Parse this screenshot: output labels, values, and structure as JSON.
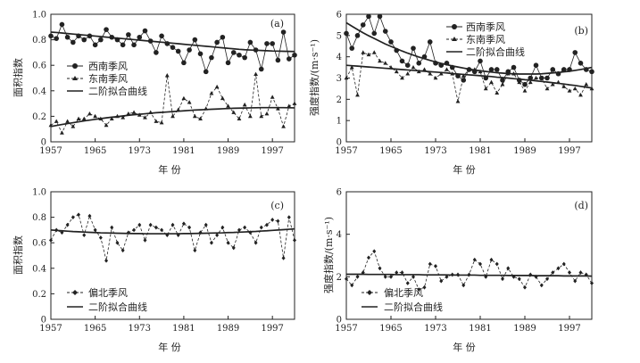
{
  "figure": {
    "xlabel": "年  份",
    "ylabel_area": "面积指数",
    "ylabel_intensity": "强度指数/(m·s⁻¹)",
    "series_names": {
      "sw": "西南季风",
      "se": "东南季风",
      "n": "偏北季风",
      "fit": "二阶拟合曲线"
    }
  },
  "chart_data": [
    {
      "type": "line",
      "panel_label": "(a)",
      "xlabel": "年  份",
      "ylabel": "面积指数",
      "xlim": [
        1957,
        2001
      ],
      "ylim": [
        0,
        1.0
      ],
      "xticks": [
        1957,
        1965,
        1973,
        1981,
        1989,
        1997
      ],
      "yticks": [
        "0",
        "0.2",
        "0.4",
        "0.6",
        "0.8",
        "1.0"
      ],
      "x": [
        1957,
        1958,
        1959,
        1960,
        1961,
        1962,
        1963,
        1964,
        1965,
        1966,
        1967,
        1968,
        1969,
        1970,
        1971,
        1972,
        1973,
        1974,
        1975,
        1976,
        1977,
        1978,
        1979,
        1980,
        1981,
        1982,
        1983,
        1984,
        1985,
        1986,
        1987,
        1988,
        1989,
        1990,
        1991,
        1992,
        1993,
        1994,
        1995,
        1996,
        1997,
        1998,
        1999,
        2000,
        2001
      ],
      "series": [
        {
          "name": "西南季风",
          "marker": "circle",
          "line": "solid",
          "values": [
            0.83,
            0.81,
            0.92,
            0.82,
            0.78,
            0.83,
            0.8,
            0.83,
            0.76,
            0.8,
            0.88,
            0.82,
            0.8,
            0.76,
            0.84,
            0.76,
            0.82,
            0.87,
            0.79,
            0.7,
            0.83,
            0.77,
            0.74,
            0.71,
            0.62,
            0.72,
            0.8,
            0.69,
            0.55,
            0.66,
            0.78,
            0.82,
            0.62,
            0.7,
            0.68,
            0.66,
            0.78,
            0.72,
            0.57,
            0.77,
            0.77,
            0.64,
            0.86,
            0.65,
            0.68
          ]
        },
        {
          "name": "东南季风",
          "marker": "triangle",
          "line": "dashed",
          "values": [
            0.13,
            0.16,
            0.07,
            0.16,
            0.12,
            0.18,
            0.18,
            0.22,
            0.2,
            0.18,
            0.13,
            0.18,
            0.2,
            0.19,
            0.22,
            0.23,
            0.21,
            0.19,
            0.23,
            0.16,
            0.15,
            0.52,
            0.2,
            0.25,
            0.34,
            0.31,
            0.2,
            0.18,
            0.26,
            0.38,
            0.43,
            0.34,
            0.28,
            0.23,
            0.18,
            0.29,
            0.2,
            0.53,
            0.2,
            0.22,
            0.35,
            0.26,
            0.12,
            0.28,
            0.3
          ]
        },
        {
          "name": "二阶拟合曲线",
          "line": "solid",
          "role": "fit-sw",
          "values": [
            0.86,
            0.857,
            0.853,
            0.849,
            0.845,
            0.841,
            0.837,
            0.833,
            0.829,
            0.825,
            0.821,
            0.817,
            0.813,
            0.809,
            0.805,
            0.801,
            0.797,
            0.793,
            0.789,
            0.785,
            0.781,
            0.777,
            0.773,
            0.769,
            0.765,
            0.761,
            0.757,
            0.753,
            0.749,
            0.745,
            0.741,
            0.737,
            0.733,
            0.729,
            0.725,
            0.722,
            0.72,
            0.718,
            0.716,
            0.714,
            0.712,
            0.711,
            0.71,
            0.709,
            0.708
          ]
        },
        {
          "name": "二阶拟合曲线",
          "line": "solid",
          "role": "fit-se",
          "values": [
            0.12,
            0.128,
            0.136,
            0.143,
            0.15,
            0.157,
            0.164,
            0.17,
            0.176,
            0.182,
            0.188,
            0.193,
            0.198,
            0.203,
            0.208,
            0.212,
            0.216,
            0.22,
            0.224,
            0.228,
            0.231,
            0.234,
            0.237,
            0.24,
            0.243,
            0.246,
            0.249,
            0.251,
            0.253,
            0.255,
            0.257,
            0.259,
            0.261,
            0.263,
            0.264,
            0.265,
            0.266,
            0.267,
            0.268,
            0.268,
            0.268,
            0.268,
            0.268,
            0.267,
            0.266
          ]
        }
      ]
    },
    {
      "type": "line",
      "panel_label": "(b)",
      "xlabel": "年  份",
      "ylabel": "强度指数/(m·s⁻¹)",
      "xlim": [
        1957,
        2001
      ],
      "ylim": [
        0,
        6
      ],
      "xticks": [
        1957,
        1965,
        1973,
        1981,
        1989,
        1997
      ],
      "yticks": [
        "0",
        "1",
        "2",
        "3",
        "4",
        "5",
        "6"
      ],
      "x": [
        1957,
        1958,
        1959,
        1960,
        1961,
        1962,
        1963,
        1964,
        1965,
        1966,
        1967,
        1968,
        1969,
        1970,
        1971,
        1972,
        1973,
        1974,
        1975,
        1976,
        1977,
        1978,
        1979,
        1980,
        1981,
        1982,
        1983,
        1984,
        1985,
        1986,
        1987,
        1988,
        1989,
        1990,
        1991,
        1992,
        1993,
        1994,
        1995,
        1996,
        1997,
        1998,
        1999,
        2000,
        2001
      ],
      "series": [
        {
          "name": "西南季风",
          "marker": "circle",
          "line": "solid",
          "values": [
            5.1,
            4.4,
            5.0,
            5.5,
            5.9,
            5.1,
            5.9,
            5.2,
            4.7,
            4.3,
            3.8,
            3.6,
            4.4,
            3.7,
            4.0,
            4.7,
            3.7,
            3.6,
            3.7,
            3.5,
            3.1,
            2.9,
            3.4,
            3.3,
            3.8,
            3.0,
            3.4,
            3.4,
            2.9,
            3.3,
            3.5,
            2.9,
            2.7,
            3.0,
            3.6,
            3.0,
            3.0,
            3.4,
            3.2,
            3.4,
            3.4,
            4.2,
            3.7,
            3.4,
            3.3
          ]
        },
        {
          "name": "东南季风",
          "marker": "triangle",
          "line": "dashed",
          "values": [
            3.0,
            3.5,
            2.2,
            4.2,
            4.1,
            4.2,
            3.8,
            3.7,
            3.5,
            3.3,
            3.0,
            3.2,
            3.5,
            3.3,
            3.4,
            3.2,
            3.0,
            3.2,
            3.4,
            3.2,
            1.9,
            3.1,
            3.4,
            3.4,
            3.3,
            2.5,
            2.8,
            2.3,
            2.7,
            3.2,
            3.2,
            2.8,
            2.4,
            2.8,
            3.0,
            3.0,
            2.5,
            2.7,
            2.8,
            2.6,
            2.4,
            2.5,
            2.2,
            2.7,
            2.5
          ]
        },
        {
          "name": "二阶拟合曲线",
          "line": "solid",
          "role": "fit-sw",
          "values": [
            5.6,
            5.44,
            5.28,
            5.13,
            4.99,
            4.86,
            4.73,
            4.6,
            4.49,
            4.38,
            4.27,
            4.17,
            4.08,
            3.99,
            3.91,
            3.83,
            3.76,
            3.69,
            3.63,
            3.57,
            3.52,
            3.47,
            3.42,
            3.38,
            3.34,
            3.31,
            3.28,
            3.25,
            3.23,
            3.21,
            3.2,
            3.19,
            3.19,
            3.19,
            3.19,
            3.2,
            3.22,
            3.24,
            3.26,
            3.29,
            3.32,
            3.36,
            3.4,
            3.45,
            3.5
          ]
        },
        {
          "name": "二阶拟合曲线",
          "line": "solid",
          "role": "fit-se",
          "values": [
            3.6,
            3.58,
            3.56,
            3.54,
            3.52,
            3.5,
            3.48,
            3.46,
            3.44,
            3.42,
            3.4,
            3.38,
            3.36,
            3.34,
            3.32,
            3.3,
            3.28,
            3.26,
            3.24,
            3.21,
            3.19,
            3.17,
            3.15,
            3.13,
            3.11,
            3.09,
            3.07,
            3.04,
            3.02,
            3.0,
            2.97,
            2.95,
            2.92,
            2.9,
            2.87,
            2.84,
            2.81,
            2.78,
            2.75,
            2.72,
            2.68,
            2.65,
            2.61,
            2.57,
            2.53
          ]
        }
      ]
    },
    {
      "type": "line",
      "panel_label": "(c)",
      "xlabel": "年  份",
      "ylabel": "面积指数",
      "xlim": [
        1957,
        2001
      ],
      "ylim": [
        0,
        1.0
      ],
      "xticks": [
        1957,
        1965,
        1973,
        1981,
        1989,
        1997
      ],
      "yticks": [
        "0",
        "0.2",
        "0.4",
        "0.6",
        "0.8",
        "1.0"
      ],
      "x": [
        1957,
        1958,
        1959,
        1960,
        1961,
        1962,
        1963,
        1964,
        1965,
        1966,
        1967,
        1968,
        1969,
        1970,
        1971,
        1972,
        1973,
        1974,
        1975,
        1976,
        1977,
        1978,
        1979,
        1980,
        1981,
        1982,
        1983,
        1984,
        1985,
        1986,
        1987,
        1988,
        1989,
        1990,
        1991,
        1992,
        1993,
        1994,
        1995,
        1996,
        1997,
        1998,
        1999,
        2000,
        2001
      ],
      "series": [
        {
          "name": "偏北季风",
          "marker": "diamond",
          "line": "dashed",
          "values": [
            0.62,
            0.7,
            0.68,
            0.74,
            0.8,
            0.82,
            0.66,
            0.81,
            0.7,
            0.64,
            0.46,
            0.72,
            0.6,
            0.54,
            0.68,
            0.7,
            0.74,
            0.62,
            0.74,
            0.72,
            0.7,
            0.66,
            0.74,
            0.66,
            0.75,
            0.72,
            0.54,
            0.68,
            0.74,
            0.6,
            0.66,
            0.72,
            0.6,
            0.56,
            0.7,
            0.72,
            0.68,
            0.6,
            0.72,
            0.74,
            0.78,
            0.77,
            0.48,
            0.8,
            0.62
          ]
        },
        {
          "name": "二阶拟合曲线",
          "line": "solid",
          "role": "fit",
          "values": [
            0.7,
            0.697,
            0.694,
            0.691,
            0.688,
            0.686,
            0.684,
            0.682,
            0.68,
            0.678,
            0.677,
            0.676,
            0.675,
            0.674,
            0.673,
            0.672,
            0.672,
            0.671,
            0.671,
            0.671,
            0.671,
            0.671,
            0.671,
            0.671,
            0.672,
            0.672,
            0.673,
            0.674,
            0.675,
            0.676,
            0.677,
            0.678,
            0.68,
            0.681,
            0.683,
            0.685,
            0.687,
            0.689,
            0.692,
            0.694,
            0.697,
            0.7,
            0.703,
            0.706,
            0.709
          ]
        }
      ]
    },
    {
      "type": "line",
      "panel_label": "(d)",
      "xlabel": "年  份",
      "ylabel": "强度指数/(m·s⁻¹)",
      "xlim": [
        1957,
        2001
      ],
      "ylim": [
        0,
        6
      ],
      "xticks": [
        1957,
        1965,
        1973,
        1981,
        1989,
        1997
      ],
      "yticks": [
        "0",
        "2",
        "4",
        "6"
      ],
      "x": [
        1957,
        1958,
        1959,
        1960,
        1961,
        1962,
        1963,
        1964,
        1965,
        1966,
        1967,
        1968,
        1969,
        1970,
        1971,
        1972,
        1973,
        1974,
        1975,
        1976,
        1977,
        1978,
        1979,
        1980,
        1981,
        1982,
        1983,
        1984,
        1985,
        1986,
        1987,
        1988,
        1989,
        1990,
        1991,
        1992,
        1993,
        1994,
        1995,
        1996,
        1997,
        1998,
        1999,
        2000,
        2001
      ],
      "series": [
        {
          "name": "偏北季风",
          "marker": "diamond",
          "line": "dashed",
          "values": [
            1.9,
            1.6,
            2.0,
            2.2,
            2.9,
            3.2,
            2.4,
            2.0,
            2.0,
            2.2,
            2.2,
            1.7,
            2.0,
            1.4,
            1.5,
            2.6,
            2.5,
            1.8,
            2.0,
            2.1,
            2.1,
            1.6,
            2.1,
            2.8,
            2.6,
            2.0,
            2.8,
            2.6,
            1.9,
            2.4,
            2.0,
            1.9,
            1.5,
            2.1,
            2.0,
            1.6,
            1.9,
            2.2,
            2.4,
            2.6,
            2.2,
            1.8,
            2.2,
            2.1,
            1.7
          ]
        },
        {
          "name": "二阶拟合曲线",
          "line": "solid",
          "role": "fit",
          "values": [
            2.12,
            2.12,
            2.12,
            2.12,
            2.11,
            2.11,
            2.11,
            2.11,
            2.11,
            2.1,
            2.1,
            2.1,
            2.1,
            2.1,
            2.09,
            2.09,
            2.09,
            2.09,
            2.09,
            2.08,
            2.08,
            2.08,
            2.08,
            2.08,
            2.07,
            2.07,
            2.07,
            2.07,
            2.07,
            2.06,
            2.06,
            2.06,
            2.06,
            2.06,
            2.05,
            2.05,
            2.05,
            2.05,
            2.05,
            2.04,
            2.04,
            2.04,
            2.04,
            2.04,
            2.03
          ]
        }
      ]
    }
  ]
}
